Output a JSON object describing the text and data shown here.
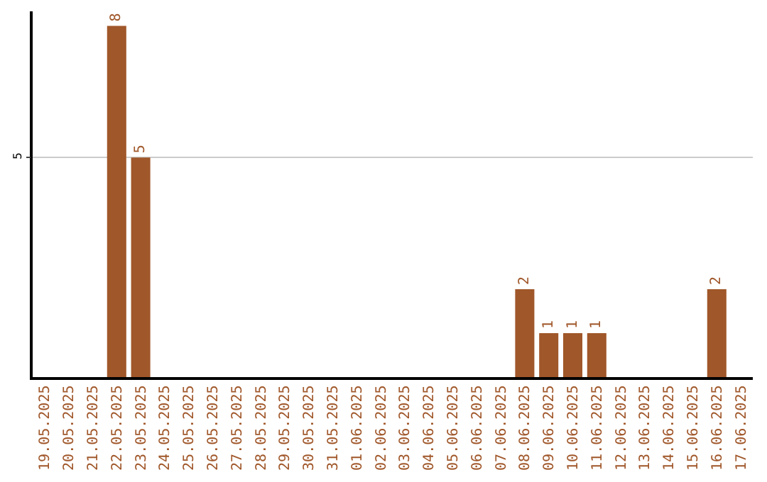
{
  "chart_data": {
    "type": "bar",
    "categories": [
      "19.05.2025",
      "20.05.2025",
      "21.05.2025",
      "22.05.2025",
      "23.05.2025",
      "24.05.2025",
      "25.05.2025",
      "26.05.2025",
      "27.05.2025",
      "28.05.2025",
      "29.05.2025",
      "30.05.2025",
      "31.05.2025",
      "01.06.2025",
      "02.06.2025",
      "03.06.2025",
      "04.06.2025",
      "05.06.2025",
      "06.06.2025",
      "07.06.2025",
      "08.06.2025",
      "09.06.2025",
      "10.06.2025",
      "11.06.2025",
      "12.06.2025",
      "13.06.2025",
      "14.06.2025",
      "15.06.2025",
      "16.06.2025",
      "17.06.2025"
    ],
    "values": [
      0,
      0,
      0,
      8,
      5,
      0,
      0,
      0,
      0,
      0,
      0,
      0,
      0,
      0,
      0,
      0,
      0,
      0,
      0,
      0,
      2,
      1,
      1,
      1,
      0,
      0,
      0,
      0,
      2,
      0
    ],
    "value_labels": [
      null,
      null,
      null,
      "8",
      "5",
      null,
      null,
      null,
      null,
      null,
      null,
      null,
      null,
      null,
      null,
      null,
      null,
      null,
      null,
      null,
      "2",
      "1",
      "1",
      "1",
      null,
      null,
      null,
      null,
      "2",
      null
    ],
    "color": "#a0572a",
    "ylim": [
      0,
      8.33
    ],
    "yticks": [
      5
    ],
    "grid": "y",
    "legend": false
  }
}
